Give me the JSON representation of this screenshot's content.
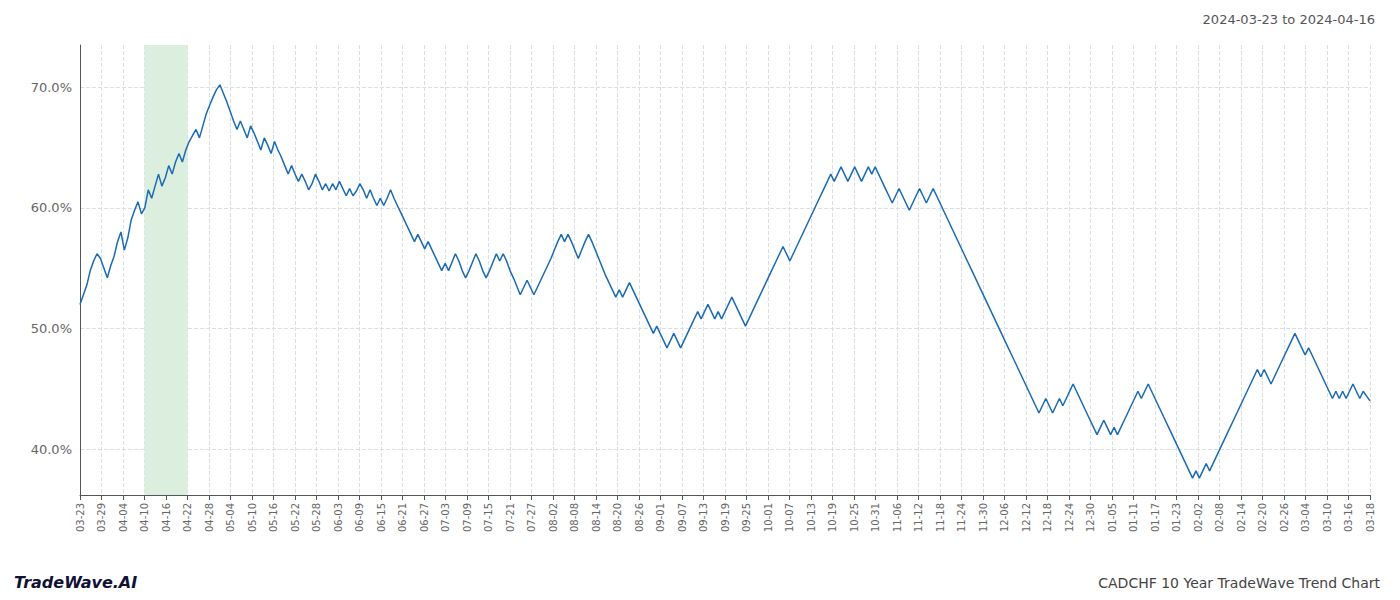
{
  "chart_data": {
    "type": "line",
    "title": "2024-03-23 to 2024-04-16",
    "annotations": [
      "TradeWave.AI",
      "CADCHF 10 Year TradeWave Trend Chart"
    ],
    "color": "#1a6bb5",
    "grid": true,
    "shaded_span": {
      "x": [
        18.9,
        31.5
      ],
      "color": "#dceedd"
    },
    "xlim": [
      0,
      378
    ],
    "xticks": [
      {
        "value": 0,
        "label": "03-23"
      },
      {
        "value": 6.3,
        "label": "03-29"
      },
      {
        "value": 12.6,
        "label": "04-04"
      },
      {
        "value": 18.9,
        "label": "04-10"
      },
      {
        "value": 25.2,
        "label": "04-16"
      },
      {
        "value": 31.5,
        "label": "04-22"
      },
      {
        "value": 37.8,
        "label": "04-28"
      },
      {
        "value": 44.1,
        "label": "05-04"
      },
      {
        "value": 50.4,
        "label": "05-10"
      },
      {
        "value": 56.7,
        "label": "05-16"
      },
      {
        "value": 63,
        "label": "05-22"
      },
      {
        "value": 69.3,
        "label": "05-28"
      },
      {
        "value": 75.6,
        "label": "06-03"
      },
      {
        "value": 81.9,
        "label": "06-09"
      },
      {
        "value": 88.2,
        "label": "06-15"
      },
      {
        "value": 94.5,
        "label": "06-21"
      },
      {
        "value": 100.8,
        "label": "06-27"
      },
      {
        "value": 107.1,
        "label": "07-03"
      },
      {
        "value": 113.4,
        "label": "07-09"
      },
      {
        "value": 119.7,
        "label": "07-15"
      },
      {
        "value": 126,
        "label": "07-21"
      },
      {
        "value": 132.3,
        "label": "07-27"
      },
      {
        "value": 138.6,
        "label": "08-02"
      },
      {
        "value": 144.9,
        "label": "08-08"
      },
      {
        "value": 151.2,
        "label": "08-14"
      },
      {
        "value": 157.5,
        "label": "08-20"
      },
      {
        "value": 163.8,
        "label": "08-26"
      },
      {
        "value": 170.1,
        "label": "09-01"
      },
      {
        "value": 176.4,
        "label": "09-07"
      },
      {
        "value": 182.7,
        "label": "09-13"
      },
      {
        "value": 189,
        "label": "09-19"
      },
      {
        "value": 195.3,
        "label": "09-25"
      },
      {
        "value": 201.6,
        "label": "10-01"
      },
      {
        "value": 207.9,
        "label": "10-07"
      },
      {
        "value": 214.2,
        "label": "10-13"
      },
      {
        "value": 220.5,
        "label": "10-19"
      },
      {
        "value": 226.8,
        "label": "10-25"
      },
      {
        "value": 233.1,
        "label": "10-31"
      },
      {
        "value": 239.4,
        "label": "11-06"
      },
      {
        "value": 245.7,
        "label": "11-12"
      },
      {
        "value": 252,
        "label": "11-18"
      },
      {
        "value": 258.3,
        "label": "11-24"
      },
      {
        "value": 264.6,
        "label": "11-30"
      },
      {
        "value": 270.9,
        "label": "12-06"
      },
      {
        "value": 277.2,
        "label": "12-12"
      },
      {
        "value": 283.5,
        "label": "12-18"
      },
      {
        "value": 289.8,
        "label": "12-24"
      },
      {
        "value": 296.1,
        "label": "12-30"
      },
      {
        "value": 302.4,
        "label": "01-05"
      },
      {
        "value": 308.7,
        "label": "01-11"
      },
      {
        "value": 315,
        "label": "01-17"
      },
      {
        "value": 321.3,
        "label": "01-23"
      },
      {
        "value": 327.6,
        "label": "02-02"
      },
      {
        "value": 333.9,
        "label": "02-08"
      },
      {
        "value": 340.2,
        "label": "02-14"
      },
      {
        "value": 346.5,
        "label": "02-20"
      },
      {
        "value": 352.8,
        "label": "02-26"
      },
      {
        "value": 359.1,
        "label": "03-04"
      },
      {
        "value": 365.4,
        "label": "03-10"
      },
      {
        "value": 371.7,
        "label": "03-16"
      },
      {
        "value": 378,
        "label": "03-18"
      }
    ],
    "ylim": [
      0.362,
      0.735
    ],
    "yticks": [
      {
        "value": 0.4,
        "label": "40.0%"
      },
      {
        "value": 0.5,
        "label": "50.0%"
      },
      {
        "value": 0.6,
        "label": "60.0%"
      },
      {
        "value": 0.7,
        "label": "70.0%"
      }
    ],
    "values": [
      0.52,
      0.528,
      0.536,
      0.548,
      0.556,
      0.562,
      0.558,
      0.55,
      0.542,
      0.552,
      0.56,
      0.572,
      0.58,
      0.565,
      0.575,
      0.59,
      0.598,
      0.605,
      0.595,
      0.6,
      0.615,
      0.608,
      0.618,
      0.628,
      0.618,
      0.625,
      0.635,
      0.628,
      0.638,
      0.645,
      0.638,
      0.648,
      0.655,
      0.66,
      0.665,
      0.658,
      0.668,
      0.678,
      0.685,
      0.692,
      0.698,
      0.702,
      0.695,
      0.688,
      0.68,
      0.672,
      0.665,
      0.672,
      0.665,
      0.658,
      0.668,
      0.662,
      0.655,
      0.648,
      0.658,
      0.652,
      0.645,
      0.655,
      0.648,
      0.642,
      0.635,
      0.628,
      0.635,
      0.628,
      0.622,
      0.628,
      0.622,
      0.615,
      0.62,
      0.628,
      0.622,
      0.615,
      0.62,
      0.614,
      0.62,
      0.615,
      0.622,
      0.616,
      0.61,
      0.616,
      0.61,
      0.614,
      0.62,
      0.615,
      0.608,
      0.615,
      0.608,
      0.602,
      0.608,
      0.602,
      0.608,
      0.615,
      0.608,
      0.602,
      0.596,
      0.59,
      0.584,
      0.578,
      0.572,
      0.578,
      0.572,
      0.566,
      0.572,
      0.566,
      0.56,
      0.554,
      0.548,
      0.554,
      0.548,
      0.555,
      0.562,
      0.556,
      0.548,
      0.542,
      0.548,
      0.555,
      0.562,
      0.556,
      0.548,
      0.542,
      0.548,
      0.555,
      0.562,
      0.556,
      0.562,
      0.556,
      0.548,
      0.542,
      0.535,
      0.528,
      0.534,
      0.54,
      0.534,
      0.528,
      0.534,
      0.54,
      0.546,
      0.552,
      0.558,
      0.565,
      0.572,
      0.578,
      0.572,
      0.578,
      0.572,
      0.565,
      0.558,
      0.565,
      0.572,
      0.578,
      0.572,
      0.565,
      0.558,
      0.551,
      0.544,
      0.538,
      0.532,
      0.526,
      0.532,
      0.526,
      0.532,
      0.538,
      0.532,
      0.526,
      0.52,
      0.514,
      0.508,
      0.502,
      0.496,
      0.502,
      0.496,
      0.49,
      0.484,
      0.49,
      0.496,
      0.49,
      0.484,
      0.49,
      0.496,
      0.502,
      0.508,
      0.514,
      0.508,
      0.514,
      0.52,
      0.514,
      0.508,
      0.514,
      0.508,
      0.514,
      0.52,
      0.526,
      0.52,
      0.514,
      0.508,
      0.502,
      0.508,
      0.514,
      0.52,
      0.526,
      0.532,
      0.538,
      0.544,
      0.55,
      0.556,
      0.562,
      0.568,
      0.562,
      0.556,
      0.562,
      0.568,
      0.574,
      0.58,
      0.586,
      0.592,
      0.598,
      0.604,
      0.61,
      0.616,
      0.622,
      0.628,
      0.622,
      0.628,
      0.634,
      0.628,
      0.622,
      0.628,
      0.634,
      0.628,
      0.622,
      0.628,
      0.634,
      0.628,
      0.634,
      0.628,
      0.622,
      0.616,
      0.61,
      0.604,
      0.61,
      0.616,
      0.61,
      0.604,
      0.598,
      0.604,
      0.61,
      0.616,
      0.61,
      0.604,
      0.61,
      0.616,
      0.61,
      0.604,
      0.598,
      0.592,
      0.586,
      0.58,
      0.574,
      0.568,
      0.562,
      0.556,
      0.55,
      0.544,
      0.538,
      0.532,
      0.526,
      0.52,
      0.514,
      0.508,
      0.502,
      0.496,
      0.49,
      0.484,
      0.478,
      0.472,
      0.466,
      0.46,
      0.454,
      0.448,
      0.442,
      0.436,
      0.43,
      0.436,
      0.442,
      0.436,
      0.43,
      0.436,
      0.442,
      0.436,
      0.442,
      0.448,
      0.454,
      0.448,
      0.442,
      0.436,
      0.43,
      0.424,
      0.418,
      0.412,
      0.418,
      0.424,
      0.418,
      0.412,
      0.418,
      0.412,
      0.418,
      0.424,
      0.43,
      0.436,
      0.442,
      0.448,
      0.442,
      0.448,
      0.454,
      0.448,
      0.442,
      0.436,
      0.43,
      0.424,
      0.418,
      0.412,
      0.406,
      0.4,
      0.394,
      0.388,
      0.382,
      0.376,
      0.382,
      0.376,
      0.382,
      0.388,
      0.382,
      0.388,
      0.394,
      0.4,
      0.406,
      0.412,
      0.418,
      0.424,
      0.43,
      0.436,
      0.442,
      0.448,
      0.454,
      0.46,
      0.466,
      0.46,
      0.466,
      0.46,
      0.454,
      0.46,
      0.466,
      0.472,
      0.478,
      0.484,
      0.49,
      0.496,
      0.49,
      0.484,
      0.478,
      0.484,
      0.478,
      0.472,
      0.466,
      0.46,
      0.454,
      0.448,
      0.442,
      0.448,
      0.442,
      0.448,
      0.442,
      0.448,
      0.454,
      0.448,
      0.442,
      0.448,
      0.444,
      0.44
    ]
  }
}
